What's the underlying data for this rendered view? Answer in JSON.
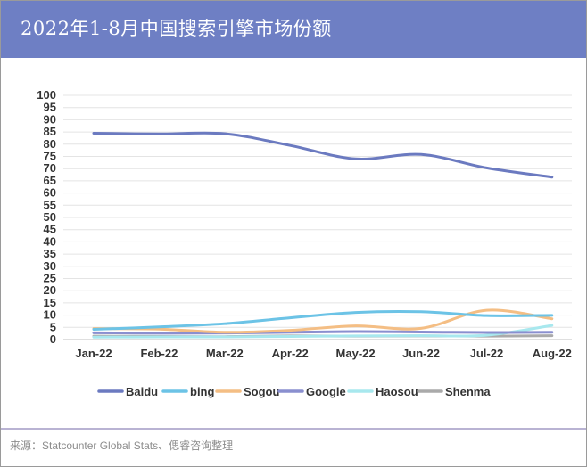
{
  "header": {
    "title": "2022年1-8月中国搜索引擎市场份额"
  },
  "footer": {
    "source": "来源：Statcounter Global Stats、偲睿咨询整理"
  },
  "colors": {
    "header_bg": "#6e7fc4",
    "footer_line": "#b9b3d3"
  },
  "chart_data": {
    "type": "line",
    "categories": [
      "Jan-22",
      "Feb-22",
      "Mar-22",
      "Apr-22",
      "May-22",
      "Jun-22",
      "Jul-22",
      "Aug-22"
    ],
    "ylim": [
      0,
      100
    ],
    "yticks": [
      0,
      5,
      10,
      15,
      20,
      25,
      30,
      35,
      40,
      45,
      50,
      55,
      60,
      65,
      70,
      75,
      80,
      85,
      90,
      95,
      100
    ],
    "grid": true,
    "legend_position": "bottom",
    "smooth": true,
    "series": [
      {
        "name": "Baidu",
        "color": "#6b7ac0",
        "values": [
          84.5,
          84.2,
          84.3,
          79.5,
          74.0,
          75.8,
          70.3,
          66.5
        ]
      },
      {
        "name": "bing",
        "color": "#6cc3e6",
        "values": [
          4.2,
          5.2,
          6.5,
          8.9,
          11.1,
          11.4,
          9.8,
          9.9
        ]
      },
      {
        "name": "Sogou",
        "color": "#f4be84",
        "values": [
          4.5,
          4.3,
          3.0,
          3.8,
          5.6,
          4.6,
          12.0,
          8.5
        ]
      },
      {
        "name": "Google",
        "color": "#8a8fcf",
        "values": [
          2.8,
          2.6,
          2.7,
          3.0,
          3.3,
          3.1,
          2.9,
          3.0
        ]
      },
      {
        "name": "Haosou",
        "color": "#a8e8ee",
        "values": [
          1.0,
          1.1,
          1.1,
          1.3,
          1.5,
          1.6,
          1.8,
          5.8
        ]
      },
      {
        "name": "Shenma",
        "color": "#aaaaaa",
        "values": [
          1.4,
          1.3,
          1.2,
          1.5,
          1.4,
          1.5,
          1.4,
          1.6
        ]
      }
    ]
  }
}
